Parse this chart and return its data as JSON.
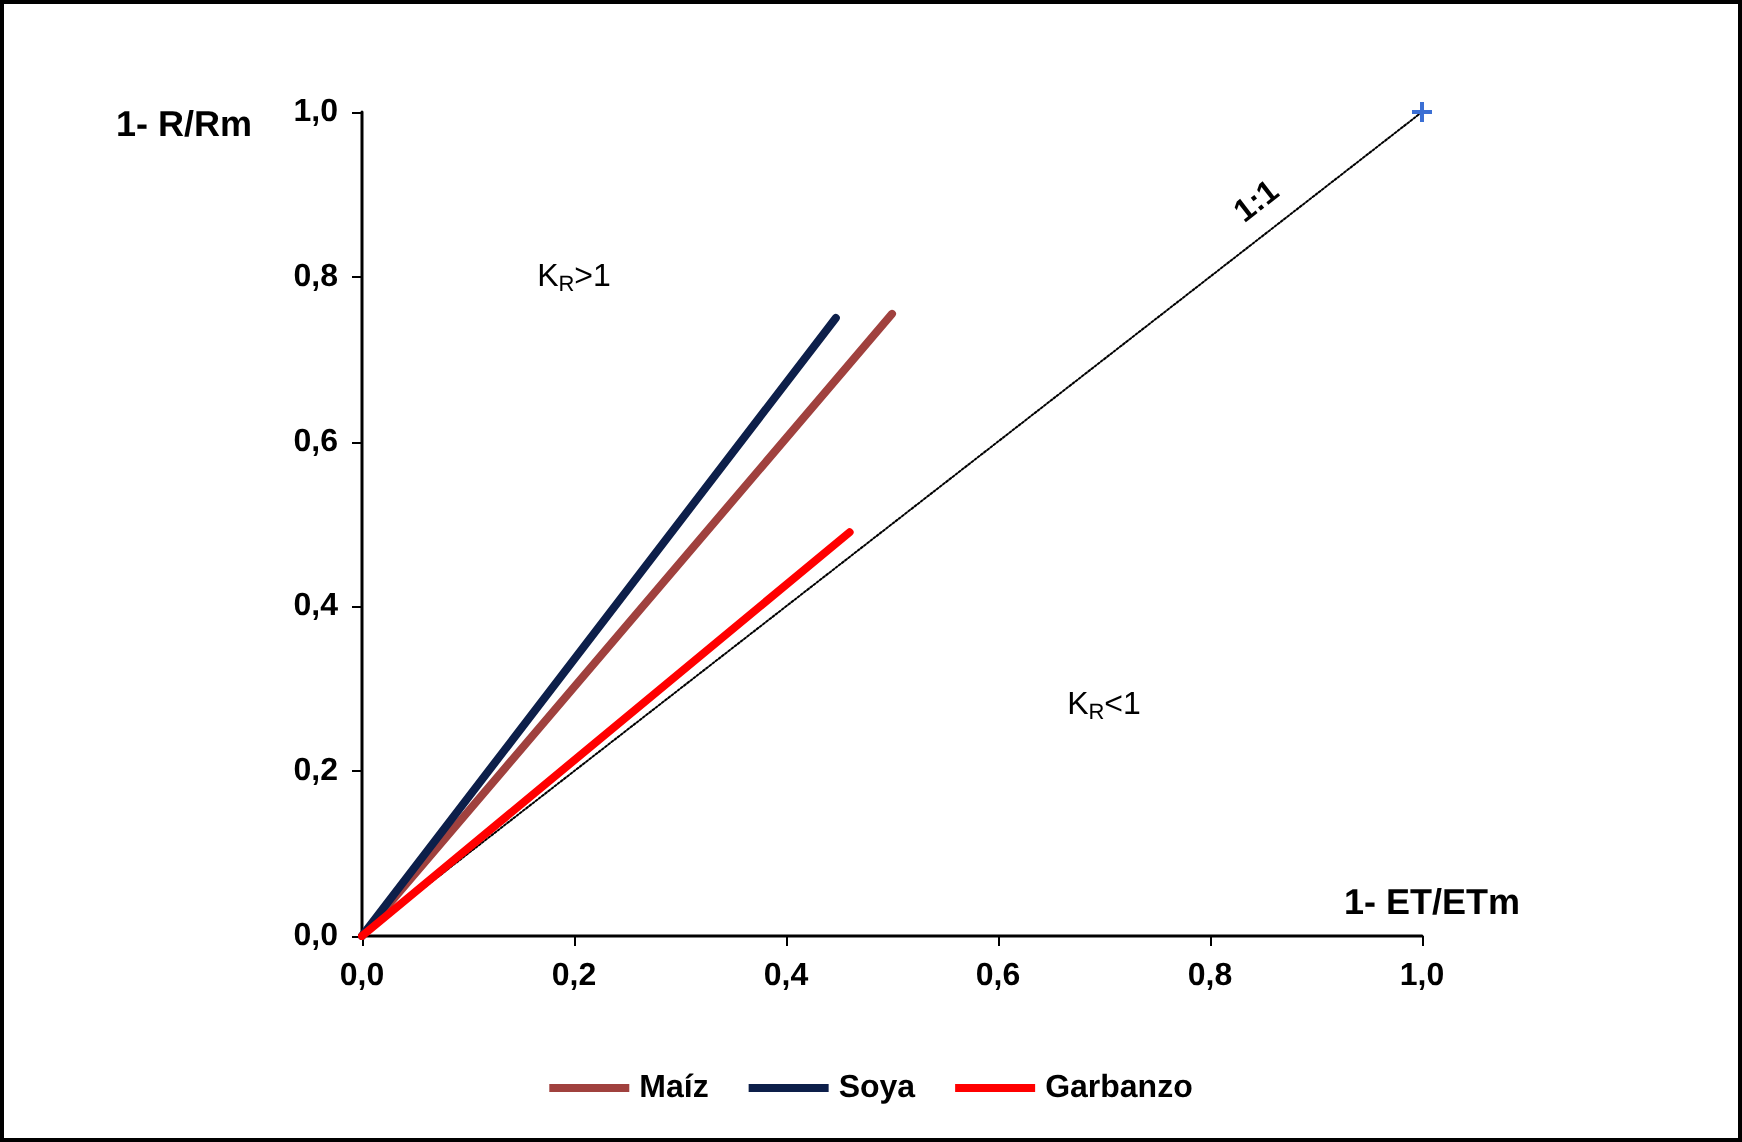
{
  "chart_data": {
    "type": "line",
    "xlabel": "1- ET/ETm",
    "ylabel": "1- R/Rm",
    "series": [
      {
        "name": "Maíz",
        "color": "#a0413e",
        "x": [
          0,
          0.5
        ],
        "values": [
          0,
          0.755
        ]
      },
      {
        "name": "Soya",
        "color": "#0d1f4a",
        "x": [
          0,
          0.447
        ],
        "values": [
          0,
          0.75
        ]
      },
      {
        "name": "Garbanzo",
        "color": "#ff0000",
        "x": [
          0,
          0.46
        ],
        "values": [
          0,
          0.49
        ]
      },
      {
        "name": "1:1",
        "color": "#000000",
        "x": [
          0,
          1
        ],
        "values": [
          0,
          1
        ],
        "line_style": "dotted",
        "marker": "cross"
      }
    ],
    "xlim": [
      0,
      1
    ],
    "ylim": [
      0,
      1
    ],
    "xticks": [
      {
        "value": 0,
        "label": "0,0"
      },
      {
        "value": 0.2,
        "label": "0,2"
      },
      {
        "value": 0.4,
        "label": "0,4"
      },
      {
        "value": 0.6,
        "label": "0,6"
      },
      {
        "value": 0.8,
        "label": "0,8"
      },
      {
        "value": 1,
        "label": "1,0"
      }
    ],
    "yticks": [
      {
        "value": 0,
        "label": "0,0"
      },
      {
        "value": 0.2,
        "label": "0,2"
      },
      {
        "value": 0.4,
        "label": "0,4"
      },
      {
        "value": 0.6,
        "label": "0,6"
      },
      {
        "value": 0.8,
        "label": "0,8"
      },
      {
        "value": 1,
        "label": "1,0"
      }
    ],
    "annotations": [
      "K$_{R}$>1",
      "K$_{R}$<1"
    ],
    "marker": "none",
    "line_style": "solid",
    "grid": false,
    "legend": "bottom"
  }
}
